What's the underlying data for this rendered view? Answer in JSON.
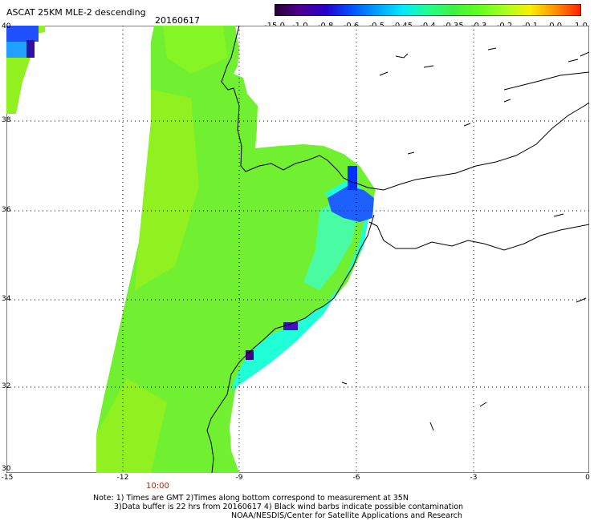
{
  "title": "ASCAT 25KM MLE-2 descending",
  "date": "20160617",
  "colorbar": {
    "labels": [
      "-15.0",
      "-1.0",
      "-0.8",
      "-0.6",
      "-0.5",
      "-0.45",
      "-0.4",
      "-0.35",
      "-0.3",
      "-0.2",
      "-0.1",
      "0.0",
      "1.0"
    ],
    "colors": [
      "#2a0030",
      "#4b0090",
      "#2800c8",
      "#0050ff",
      "#00a0ff",
      "#00e8ff",
      "#20ff90",
      "#40f040",
      "#60ff20",
      "#a8ff20",
      "#f8f000",
      "#ff9000",
      "#ff2000"
    ]
  },
  "map": {
    "lat_labels": [
      "40",
      "38",
      "36",
      "34",
      "32",
      "30"
    ],
    "lon_labels": [
      "-15",
      "-12",
      "-9",
      "-6",
      "-3",
      "0"
    ],
    "colors": {
      "land_line": "#000000",
      "grid": "#000000",
      "swath_main": "#70f030",
      "swath_light": "#90f020",
      "swath_cyan": "#20ffd8",
      "swath_blue": "#0040ff"
    }
  },
  "time_label": "10:00",
  "notes": {
    "line1": "Note: 1) Times are GMT 2)Times along bottom correspond to measurement at 35N",
    "line2": "3)Data buffer is 22 hrs from 20160617 4) Black wind barbs indicate possible contamination",
    "line3": "NOAA/NESDIS/Center for Satellite Applications and Research"
  }
}
